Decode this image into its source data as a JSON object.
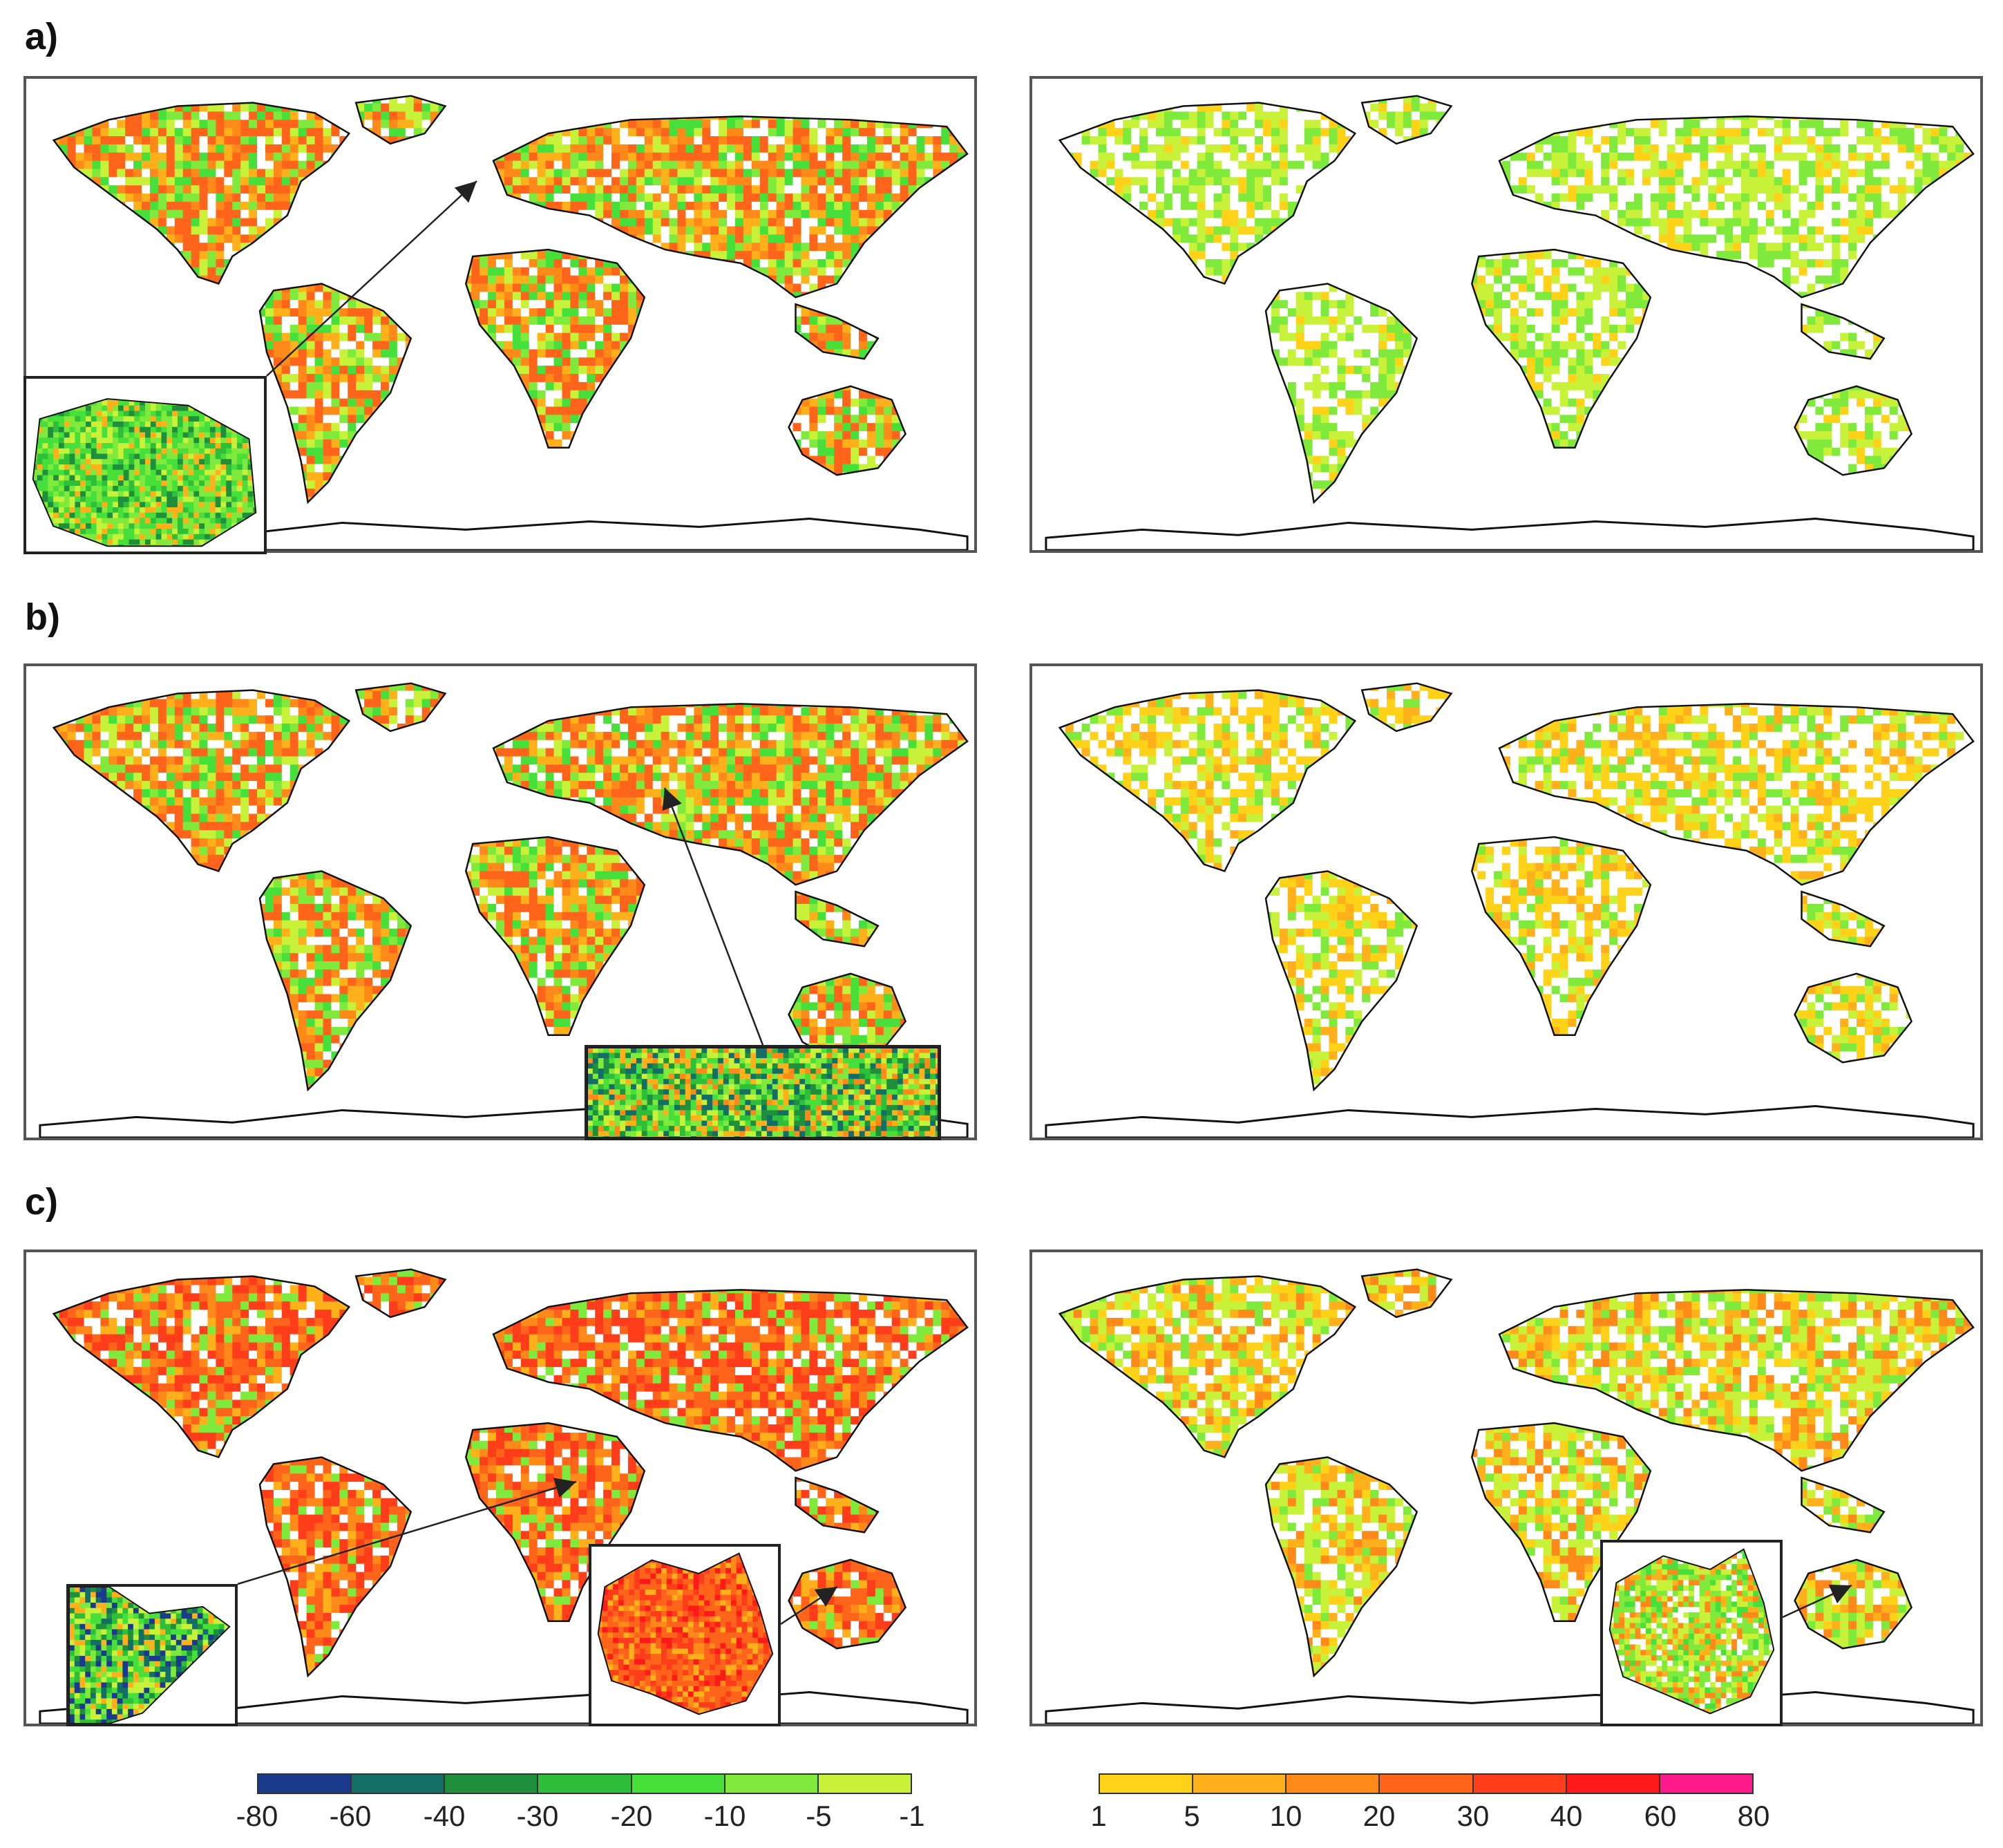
{
  "row_labels": [
    "a)",
    "b)",
    "c)"
  ],
  "colorbar_negative": {
    "ticks": [
      "-80",
      "-60",
      "-40",
      "-30",
      "-20",
      "-10",
      "-5",
      "-1"
    ],
    "colors": [
      "#1b3a8c",
      "#136f66",
      "#1f8f3c",
      "#2fbe3a",
      "#47df3a",
      "#7fea3b",
      "#c8f23a"
    ]
  },
  "colorbar_positive": {
    "ticks": [
      "1",
      "5",
      "10",
      "20",
      "30",
      "40",
      "60",
      "80"
    ],
    "colors": [
      "#ffd21a",
      "#ffb01a",
      "#ff8a1a",
      "#ff651a",
      "#ff3d1a",
      "#ff1a1a",
      "#ff1a8c"
    ]
  },
  "panels": [
    {
      "id": "a-left",
      "tone": "mixed-warm"
    },
    {
      "id": "a-right",
      "tone": "pale-green"
    },
    {
      "id": "b-left",
      "tone": "mixed-warm"
    },
    {
      "id": "b-right",
      "tone": "pale-yellow"
    },
    {
      "id": "c-left",
      "tone": "hot"
    },
    {
      "id": "c-right",
      "tone": "pale-mixed"
    }
  ],
  "insets": [
    {
      "id": "europe-inset",
      "tone": "green"
    },
    {
      "id": "central-asia-inset",
      "tone": "green-band"
    },
    {
      "id": "horn-africa-inset",
      "tone": "green-dark"
    },
    {
      "id": "australia-inset-left",
      "tone": "hot"
    },
    {
      "id": "australia-inset-right",
      "tone": "pale-green"
    }
  ]
}
